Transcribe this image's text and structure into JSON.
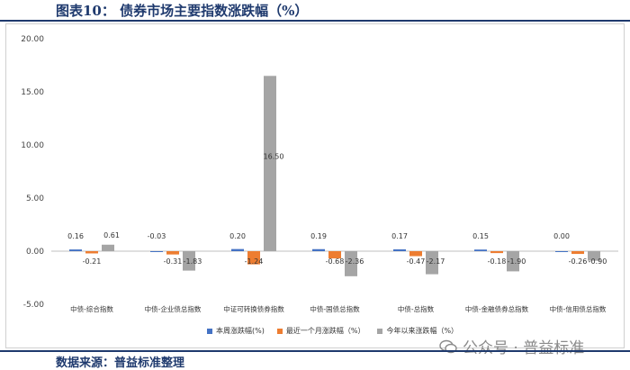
{
  "title": "图表10：  债券市场主要指数涨跌幅（%）",
  "source": "数据来源：普益标准整理",
  "watermark": "公众号 · 普益标准",
  "colors": {
    "series1": "#4472c4",
    "series2": "#ed7d31",
    "series3": "#a5a5a5",
    "brand": "#1f3a6e"
  },
  "chart_data": {
    "type": "bar",
    "categories": [
      "中债-综合指数",
      "中债-企业债总指数",
      "中证可转换债券指数",
      "中债-国债总指数",
      "中债-总指数",
      "中债-金融债券总指数",
      "中债-信用债总指数"
    ],
    "series": [
      {
        "name": "本周涨跌幅(%)",
        "values": [
          0.16,
          -0.03,
          0.2,
          0.19,
          0.17,
          0.15,
          0.0
        ],
        "labels": [
          "0.16",
          "-0.03",
          "0.20",
          "0.19",
          "0.17",
          "0.15",
          "0.00"
        ]
      },
      {
        "name": "最近一个月涨跌幅（%）",
        "values": [
          -0.21,
          -0.31,
          -1.24,
          -0.68,
          -0.47,
          -0.18,
          -0.26
        ],
        "labels": [
          "-0.21",
          "-0.31",
          "-1.24",
          "-0.68",
          "-0.47",
          "-0.18",
          "-0.26"
        ]
      },
      {
        "name": "今年以来涨跌幅（%）",
        "values": [
          0.61,
          -1.83,
          16.5,
          -2.36,
          -2.17,
          -1.9,
          -0.9
        ],
        "labels": [
          "0.61",
          "-1.83",
          "16.50",
          "-2.36",
          "-2.17",
          "-1.90",
          "-0.90"
        ]
      }
    ],
    "yticks": [
      "20.00",
      "15.00",
      "10.00",
      "5.00",
      "0.00",
      "-5.00"
    ],
    "ylim": [
      -5,
      20
    ],
    "legend_position": "bottom",
    "grid": false
  }
}
